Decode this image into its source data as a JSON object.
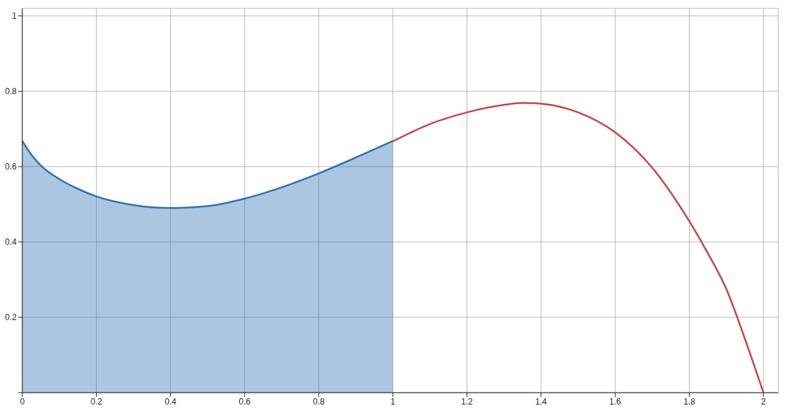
{
  "chart_data": {
    "type": "line",
    "series": [
      {
        "type": "area",
        "color": "#2d70b3",
        "x": [
          0,
          0.025,
          0.05,
          0.1,
          0.15,
          0.2,
          0.3,
          0.4,
          0.5,
          0.6,
          0.7,
          0.8,
          0.9,
          1.0
        ],
        "values": [
          0.668,
          0.631,
          0.603,
          0.567,
          0.541,
          0.521,
          0.498,
          0.49,
          0.495,
          0.515,
          0.545,
          0.582,
          0.624,
          0.668
        ]
      },
      {
        "color": "#c74440",
        "x": [
          1.0,
          1.1,
          1.2,
          1.3,
          1.35,
          1.4,
          1.5,
          1.6,
          1.7,
          1.8,
          1.85,
          1.9,
          1.95,
          2.0
        ],
        "values": [
          0.667,
          0.713,
          0.744,
          0.764,
          0.769,
          0.767,
          0.744,
          0.691,
          0.597,
          0.455,
          0.37,
          0.275,
          0.143,
          0
        ]
      }
    ],
    "xlim": [
      0,
      2.04
    ],
    "ylim": [
      0,
      1.02
    ],
    "xticks": [
      0,
      0.2,
      0.4,
      0.6,
      0.8,
      1,
      1.2,
      1.4,
      1.6,
      1.8,
      2
    ],
    "yticks": [
      {
        "value": 0,
        "label": null
      },
      0.2,
      0.4,
      0.6,
      0.8,
      1
    ],
    "grid": true,
    "marker": "none",
    "line_style": "solid"
  }
}
